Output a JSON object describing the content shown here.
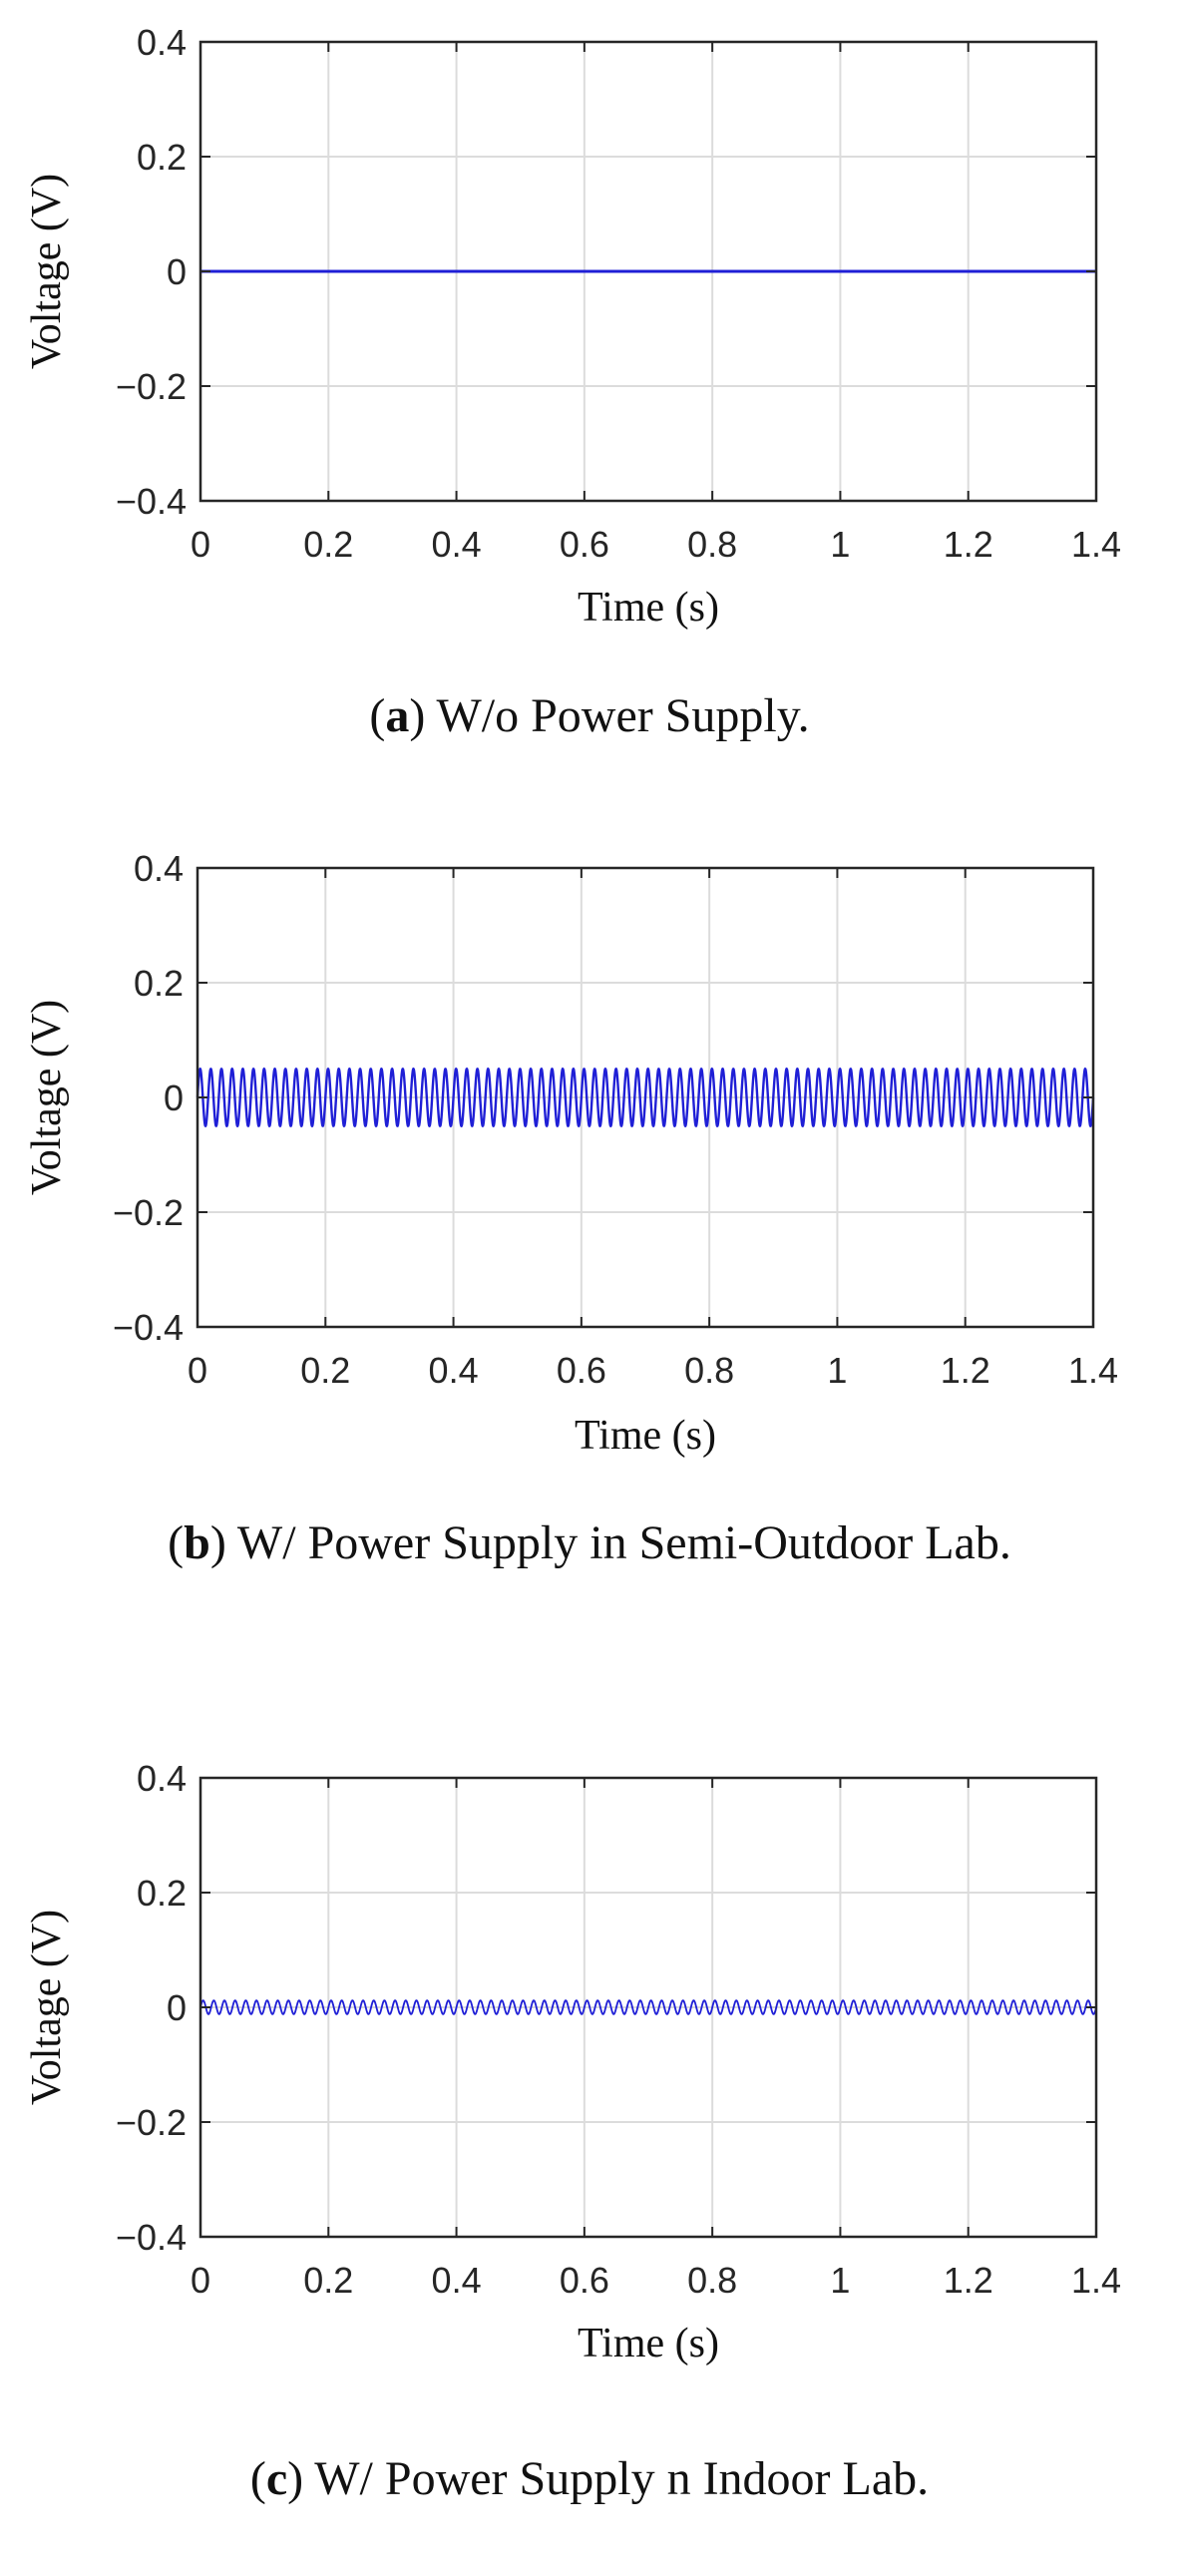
{
  "colors": {
    "line": "#1f1fd6",
    "grid": "#dcdcdc",
    "axes": "#262626"
  },
  "chart_data": [
    {
      "type": "line",
      "xlabel": "Time (s)",
      "ylabel": "Voltage (V)",
      "xlim": [
        0,
        1.4
      ],
      "ylim": [
        -0.4,
        0.4
      ],
      "x_ticks": [
        "0",
        "0.2",
        "0.4",
        "0.6",
        "0.8",
        "1",
        "1.2",
        "1.4"
      ],
      "y_ticks": [
        "0.4",
        "0.2",
        "0",
        "−0.2",
        "−0.4"
      ],
      "grid": true,
      "series": [
        {
          "amplitude": 0.0,
          "frequency_hz": 0,
          "offset": 0.0
        }
      ],
      "caption": {
        "prefix": "(",
        "letter": "a",
        "text": ") W/o Power Supply."
      }
    },
    {
      "type": "line",
      "xlabel": "Time (s)",
      "ylabel": "Voltage (V)",
      "xlim": [
        0,
        1.4
      ],
      "ylim": [
        -0.4,
        0.4
      ],
      "x_ticks": [
        "0",
        "0.2",
        "0.4",
        "0.6",
        "0.8",
        "1",
        "1.2",
        "1.4"
      ],
      "y_ticks": [
        "0.4",
        "0.2",
        "0",
        "−0.2",
        "−0.4"
      ],
      "grid": true,
      "series": [
        {
          "amplitude": 0.05,
          "frequency_hz": 60,
          "offset": 0.0
        }
      ],
      "caption": {
        "prefix": "(",
        "letter": "b",
        "text": ") W/ Power Supply in Semi-Outdoor Lab."
      }
    },
    {
      "type": "line",
      "xlabel": "Time (s)",
      "ylabel": "Voltage (V)",
      "xlim": [
        0,
        1.4
      ],
      "ylim": [
        -0.4,
        0.4
      ],
      "x_ticks": [
        "0",
        "0.2",
        "0.4",
        "0.6",
        "0.8",
        "1",
        "1.2",
        "1.4"
      ],
      "y_ticks": [
        "0.4",
        "0.2",
        "0",
        "−0.2",
        "−0.4"
      ],
      "grid": true,
      "series": [
        {
          "amplitude": 0.012,
          "frequency_hz": 60,
          "offset": 0.0
        }
      ],
      "caption": {
        "prefix": "(",
        "letter": "c",
        "text": ") W/ Power Supply n Indoor Lab."
      }
    }
  ]
}
